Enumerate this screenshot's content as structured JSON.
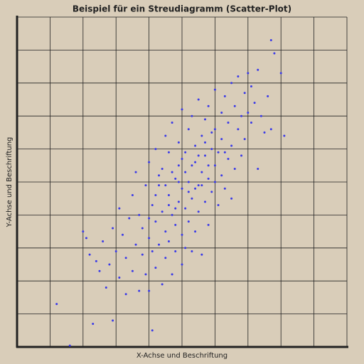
{
  "chart_data": {
    "type": "scatter",
    "title": "Beispiel für ein Streudiagramm (Scatter-Plot)",
    "x_label": "X-Achse und Beschriftung",
    "y_label": "Y-Achse und Beschriftung",
    "xlim": [
      0,
      10
    ],
    "ylim": [
      0,
      10
    ],
    "xticks": [
      0,
      1,
      2,
      3,
      4,
      5,
      6,
      7,
      8,
      9,
      10
    ],
    "yticks": [
      0,
      1,
      2,
      3,
      4,
      5,
      6,
      7,
      8,
      9,
      10
    ],
    "grid": true,
    "color": "#3a3ae8",
    "x": [
      1.2,
      1.6,
      2.3,
      2.9,
      4.1,
      7.7,
      7.8,
      8.0,
      8.1,
      7.3,
      7.7,
      2.0,
      2.1,
      2.2,
      2.4,
      2.5,
      2.6,
      2.7,
      2.8,
      2.9,
      3.0,
      3.1,
      3.1,
      3.2,
      3.3,
      3.3,
      3.4,
      3.5,
      3.5,
      3.6,
      3.6,
      3.7,
      3.7,
      3.8,
      3.8,
      3.9,
      3.9,
      4.0,
      4.0,
      4.0,
      4.1,
      4.1,
      4.2,
      4.2,
      4.2,
      4.3,
      4.3,
      4.4,
      4.4,
      4.4,
      4.5,
      4.5,
      4.5,
      4.6,
      4.6,
      4.6,
      4.7,
      4.7,
      4.7,
      4.8,
      4.8,
      4.8,
      4.9,
      4.9,
      4.9,
      5.0,
      5.0,
      5.0,
      5.0,
      5.1,
      5.1,
      5.1,
      5.2,
      5.2,
      5.2,
      5.3,
      5.3,
      5.3,
      5.4,
      5.4,
      5.4,
      5.5,
      5.5,
      5.5,
      5.6,
      5.6,
      5.6,
      5.7,
      5.7,
      5.7,
      5.8,
      5.8,
      5.8,
      5.9,
      5.9,
      6.0,
      6.0,
      6.0,
      6.1,
      6.1,
      6.2,
      6.2,
      6.2,
      6.3,
      6.3,
      6.4,
      6.4,
      6.5,
      6.5,
      6.5,
      6.6,
      6.6,
      6.7,
      6.7,
      6.8,
      6.8,
      6.9,
      6.9,
      7.0,
      7.0,
      7.1,
      7.1,
      7.2,
      7.3,
      7.4,
      7.5,
      7.6,
      4.0,
      4.3,
      4.6,
      4.9,
      5.1,
      5.3,
      5.5,
      5.7,
      5.9,
      4.2,
      4.5,
      4.8,
      5.2,
      5.6,
      6.0,
      6.3,
      5.0,
      4.7,
      5.4,
      5.8
    ],
    "y": [
      1.3,
      0.04,
      0.7,
      0.8,
      0.5,
      9.3,
      8.9,
      8.3,
      6.4,
      5.4,
      6.6,
      3.5,
      3.3,
      2.8,
      2.6,
      2.3,
      3.2,
      1.8,
      2.5,
      3.6,
      2.9,
      2.1,
      4.2,
      3.4,
      1.6,
      2.7,
      3.9,
      4.6,
      2.3,
      3.1,
      5.3,
      1.7,
      4.0,
      2.8,
      3.6,
      4.9,
      2.2,
      3.3,
      5.6,
      1.7,
      4.3,
      2.9,
      3.8,
      6.0,
      2.4,
      4.9,
      3.1,
      5.4,
      1.9,
      4.1,
      3.5,
      6.4,
      2.7,
      4.6,
      5.9,
      3.2,
      2.2,
      4.0,
      6.8,
      5.1,
      3.7,
      2.9,
      4.4,
      6.2,
      5.5,
      3.4,
      4.8,
      7.2,
      2.5,
      5.9,
      4.2,
      3.0,
      6.6,
      5.0,
      3.8,
      4.5,
      7.0,
      2.9,
      5.6,
      6.1,
      3.5,
      4.9,
      7.5,
      4.1,
      5.3,
      6.4,
      2.8,
      5.8,
      4.4,
      6.9,
      5.1,
      3.7,
      7.3,
      6.0,
      4.7,
      5.5,
      7.8,
      6.6,
      4.3,
      5.9,
      7.1,
      5.2,
      6.3,
      4.8,
      7.6,
      5.7,
      6.8,
      8.0,
      6.1,
      4.5,
      7.3,
      5.4,
      8.2,
      6.6,
      7.0,
      5.8,
      7.7,
      6.3,
      8.3,
      7.1,
      6.8,
      7.9,
      7.4,
      8.4,
      7.0,
      6.5,
      7.6,
      3.9,
      5.2,
      4.3,
      5.0,
      5.3,
      5.5,
      5.8,
      6.2,
      6.5,
      4.6,
      4.9,
      4.2,
      4.7,
      4.9,
      5.0,
      5.9,
      5.7,
      5.3,
      4.8,
      5.5
    ]
  }
}
